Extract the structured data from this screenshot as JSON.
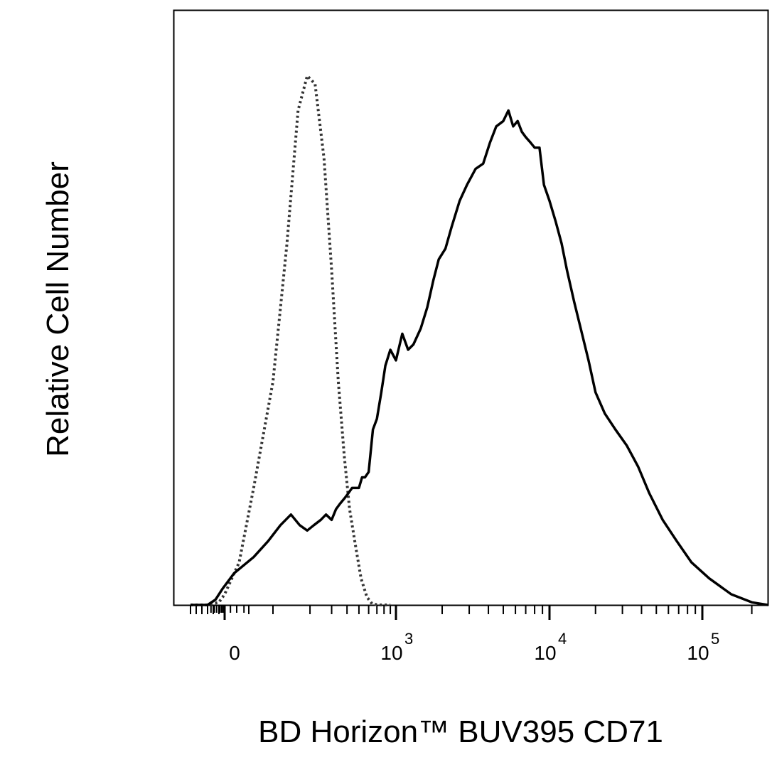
{
  "chart_data": {
    "type": "line",
    "xlabel": "BD Horizon™ BUV395 CD71",
    "ylabel": "Relative Cell Number",
    "x_scale": "biexponential (logicle)",
    "x_ticks": [
      {
        "value": 0,
        "base": "0",
        "exp": ""
      },
      {
        "value": 1000,
        "base": "10",
        "exp": "3"
      },
      {
        "value": 10000,
        "base": "10",
        "exp": "4"
      },
      {
        "value": 100000,
        "base": "10",
        "exp": "5"
      }
    ],
    "x_range": [
      -300,
      250000
    ],
    "y_range": [
      0,
      100
    ],
    "grid": false,
    "legend": "none",
    "series": [
      {
        "style": "dotted",
        "color": "#333333",
        "x": [
          -300,
          -150,
          -50,
          0,
          30,
          60,
          100,
          130,
          160,
          190,
          220,
          260,
          300,
          340,
          380,
          420,
          470,
          520,
          580,
          640,
          720,
          800,
          900
        ],
        "y": [
          0,
          0,
          0.5,
          2,
          8,
          22,
          42,
          68,
          93,
          99.5,
          98,
          84,
          63,
          42,
          28,
          18,
          11,
          5,
          1.5,
          0.2,
          0,
          0,
          0
        ]
      },
      {
        "style": "solid",
        "color": "#000000",
        "x": [
          -300,
          -150,
          -80,
          -20,
          20,
          60,
          90,
          115,
          140,
          165,
          190,
          215,
          245,
          270,
          300,
          325,
          350,
          380,
          410,
          440,
          470,
          500,
          530,
          560,
          600,
          650,
          700,
          760,
          820,
          900,
          1000,
          1100,
          1200,
          1300,
          1450,
          1600,
          1750,
          1900,
          2100,
          2300,
          2600,
          2900,
          3300,
          3700,
          4100,
          4500,
          5000,
          5400,
          5800,
          6200,
          6600,
          7000,
          7500,
          8000,
          8600,
          9200,
          10000,
          11000,
          12000,
          13000,
          14500,
          16000,
          18000,
          20000,
          23000,
          27000,
          32000,
          38000,
          45000,
          55000,
          68000,
          85000,
          110000,
          150000,
          200000,
          250000
        ],
        "y": [
          0,
          0,
          1,
          3,
          6,
          9,
          12,
          15,
          17,
          15,
          14,
          15,
          16,
          17,
          16,
          18,
          19,
          20,
          21,
          22,
          22,
          22,
          24,
          24,
          25,
          33,
          35,
          40,
          45,
          48,
          46,
          51,
          48,
          49,
          52,
          56,
          61,
          65,
          67,
          71,
          76,
          79,
          82,
          83,
          87,
          90,
          91,
          93,
          90,
          91,
          89,
          88,
          87,
          86,
          86,
          79,
          76,
          72,
          68,
          63,
          57,
          52,
          46,
          40,
          36,
          33,
          30,
          26,
          21,
          16,
          12,
          8,
          5,
          2,
          0.5,
          0
        ]
      }
    ]
  }
}
